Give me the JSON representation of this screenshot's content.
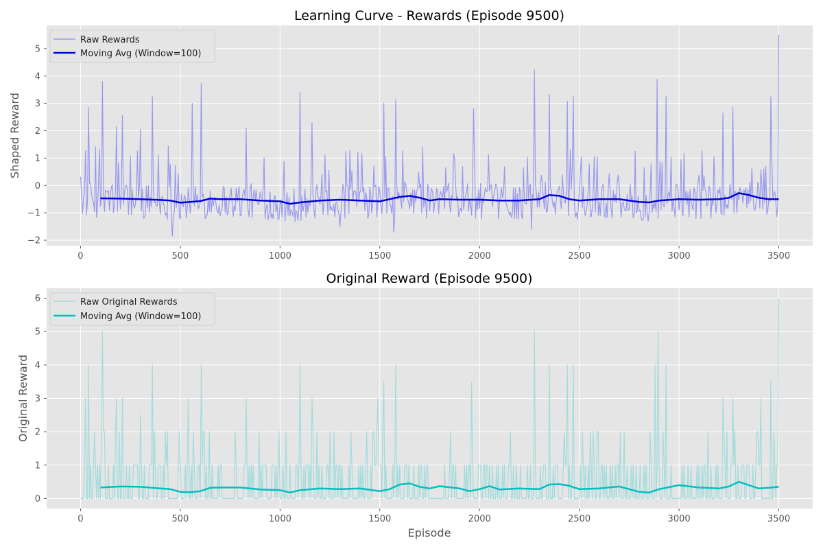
{
  "chart_data": [
    {
      "type": "line",
      "title": "Learning Curve - Rewards (Episode 9500)",
      "xlabel": "",
      "ylabel": "Shaped Reward",
      "xlim": [
        -170,
        3670
      ],
      "ylim": [
        -2.2,
        5.85
      ],
      "xticks": [
        0,
        500,
        1000,
        1500,
        2000,
        2500,
        3000,
        3500
      ],
      "yticks": [
        -2,
        -1,
        0,
        1,
        2,
        3,
        4,
        5
      ],
      "grid": true,
      "legend_position": "upper-left",
      "raw_color": "#9999ee",
      "avg_color": "#0000dd",
      "series": [
        {
          "name": "Raw Rewards",
          "description": "Noisy per-episode shaped reward, mostly between -1.5 and 1, with occasional spikes",
          "x": [
            0,
            3500
          ],
          "baseline": -0.5,
          "spikes": [
            {
              "x": 40,
              "y": 2.85
            },
            {
              "x": 110,
              "y": 3.8
            },
            {
              "x": 180,
              "y": 2.15
            },
            {
              "x": 210,
              "y": 2.55
            },
            {
              "x": 300,
              "y": 2.05
            },
            {
              "x": 360,
              "y": 3.25
            },
            {
              "x": 560,
              "y": 3.0
            },
            {
              "x": 605,
              "y": 3.72
            },
            {
              "x": 830,
              "y": 2.1
            },
            {
              "x": 1100,
              "y": 3.4
            },
            {
              "x": 1160,
              "y": 2.3
            },
            {
              "x": 1520,
              "y": 3.0
            },
            {
              "x": 1580,
              "y": 3.15
            },
            {
              "x": 1970,
              "y": 2.8
            },
            {
              "x": 2275,
              "y": 4.23
            },
            {
              "x": 2350,
              "y": 3.33
            },
            {
              "x": 2440,
              "y": 3.07
            },
            {
              "x": 2470,
              "y": 3.27
            },
            {
              "x": 2890,
              "y": 3.88
            },
            {
              "x": 2935,
              "y": 3.25
            },
            {
              "x": 3220,
              "y": 2.65
            },
            {
              "x": 3270,
              "y": 2.85
            },
            {
              "x": 3460,
              "y": 3.25
            },
            {
              "x": 3500,
              "y": 5.5
            }
          ],
          "dips": [
            {
              "x": 460,
              "y": -1.85
            },
            {
              "x": 1520,
              "y": -1.85
            },
            {
              "x": 1300,
              "y": -1.5
            },
            {
              "x": 1570,
              "y": -1.7
            },
            {
              "x": 2260,
              "y": -1.6
            }
          ]
        },
        {
          "name": "Moving Avg (Window=100)",
          "x": [
            100,
            200,
            300,
            400,
            450,
            500,
            550,
            600,
            650,
            700,
            800,
            900,
            1000,
            1050,
            1100,
            1200,
            1300,
            1400,
            1500,
            1550,
            1600,
            1650,
            1700,
            1750,
            1800,
            1900,
            2000,
            2100,
            2200,
            2300,
            2350,
            2400,
            2450,
            2500,
            2600,
            2700,
            2800,
            2850,
            2900,
            3000,
            3100,
            3200,
            3250,
            3300,
            3350,
            3400,
            3450,
            3500
          ],
          "values": [
            -0.47,
            -0.48,
            -0.5,
            -0.53,
            -0.55,
            -0.63,
            -0.6,
            -0.57,
            -0.48,
            -0.5,
            -0.5,
            -0.55,
            -0.58,
            -0.67,
            -0.62,
            -0.55,
            -0.52,
            -0.55,
            -0.58,
            -0.5,
            -0.42,
            -0.38,
            -0.45,
            -0.55,
            -0.5,
            -0.52,
            -0.52,
            -0.55,
            -0.55,
            -0.5,
            -0.35,
            -0.38,
            -0.5,
            -0.55,
            -0.5,
            -0.5,
            -0.6,
            -0.62,
            -0.55,
            -0.5,
            -0.52,
            -0.5,
            -0.45,
            -0.28,
            -0.35,
            -0.45,
            -0.5,
            -0.5
          ]
        }
      ]
    },
    {
      "type": "line",
      "title": "Original Reward (Episode 9500)",
      "xlabel": "Episode",
      "ylabel": "Original Reward",
      "xlim": [
        -170,
        3670
      ],
      "ylim": [
        -0.3,
        6.3
      ],
      "xticks": [
        0,
        500,
        1000,
        1500,
        2000,
        2500,
        3000,
        3500
      ],
      "yticks": [
        0,
        1,
        2,
        3,
        4,
        5,
        6
      ],
      "grid": true,
      "legend_position": "upper-left",
      "raw_color": "#a3dcdc",
      "avg_color": "#00bfbf",
      "series": [
        {
          "name": "Raw Original Rewards",
          "description": "Per-episode original reward, integer values mostly 0 or 1 with spikes",
          "x": [
            0,
            3500
          ],
          "spikes": [
            {
              "x": 25,
              "y": 3
            },
            {
              "x": 40,
              "y": 4
            },
            {
              "x": 110,
              "y": 5
            },
            {
              "x": 180,
              "y": 3
            },
            {
              "x": 210,
              "y": 3
            },
            {
              "x": 300,
              "y": 2.5
            },
            {
              "x": 360,
              "y": 4
            },
            {
              "x": 540,
              "y": 3
            },
            {
              "x": 605,
              "y": 4
            },
            {
              "x": 830,
              "y": 3
            },
            {
              "x": 1100,
              "y": 4
            },
            {
              "x": 1160,
              "y": 3
            },
            {
              "x": 1490,
              "y": 3
            },
            {
              "x": 1520,
              "y": 3.5
            },
            {
              "x": 1580,
              "y": 4
            },
            {
              "x": 1960,
              "y": 3.5
            },
            {
              "x": 2275,
              "y": 5
            },
            {
              "x": 2350,
              "y": 4
            },
            {
              "x": 2440,
              "y": 4
            },
            {
              "x": 2470,
              "y": 4
            },
            {
              "x": 2880,
              "y": 4
            },
            {
              "x": 2895,
              "y": 5
            },
            {
              "x": 2935,
              "y": 4
            },
            {
              "x": 3220,
              "y": 3
            },
            {
              "x": 3270,
              "y": 3
            },
            {
              "x": 3410,
              "y": 3
            },
            {
              "x": 3460,
              "y": 3.5
            },
            {
              "x": 3500,
              "y": 6
            }
          ]
        },
        {
          "name": "Moving Avg (Window=100)",
          "x": [
            100,
            200,
            300,
            400,
            450,
            500,
            550,
            600,
            650,
            700,
            800,
            900,
            1000,
            1050,
            1100,
            1200,
            1300,
            1400,
            1500,
            1550,
            1600,
            1650,
            1700,
            1750,
            1800,
            1900,
            1950,
            2000,
            2050,
            2100,
            2200,
            2300,
            2350,
            2400,
            2450,
            2500,
            2600,
            2700,
            2800,
            2850,
            2900,
            3000,
            3100,
            3200,
            3250,
            3300,
            3350,
            3400,
            3450,
            3500
          ],
          "values": [
            0.33,
            0.36,
            0.35,
            0.3,
            0.28,
            0.2,
            0.19,
            0.22,
            0.32,
            0.33,
            0.33,
            0.27,
            0.25,
            0.18,
            0.25,
            0.3,
            0.28,
            0.3,
            0.22,
            0.28,
            0.42,
            0.45,
            0.35,
            0.3,
            0.37,
            0.3,
            0.22,
            0.28,
            0.37,
            0.27,
            0.3,
            0.28,
            0.42,
            0.43,
            0.38,
            0.28,
            0.3,
            0.36,
            0.2,
            0.18,
            0.28,
            0.4,
            0.33,
            0.3,
            0.36,
            0.5,
            0.4,
            0.3,
            0.32,
            0.35
          ]
        }
      ]
    }
  ]
}
